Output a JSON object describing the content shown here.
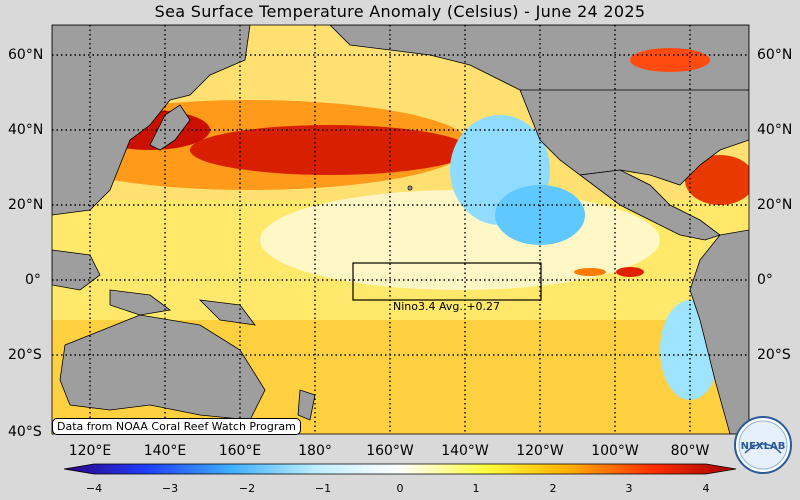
{
  "title": "Sea Surface Temperature Anomaly (Celsius) - June 24 2025",
  "lat_labels": [
    "60°N",
    "40°N",
    "20°N",
    "0°",
    "20°S",
    "40°S"
  ],
  "lon_labels": [
    "120°E",
    "140°E",
    "160°E",
    "180°",
    "160°W",
    "140°W",
    "120°W",
    "100°W",
    "80°W"
  ],
  "credit": "Data from NOAA Coral Reef Watch Program",
  "nino_label": "Nino3.4 Avg. +0.27",
  "colorbar": {
    "ticks": [
      "−4",
      "−3",
      "−2",
      "−1",
      "0",
      "1",
      "2",
      "3",
      "4"
    ],
    "colors": [
      "#2b0080",
      "#2040ff",
      "#3fb0ff",
      "#bfeeff",
      "#ffffff",
      "#ffff40",
      "#ffb000",
      "#ff3000",
      "#a00000"
    ]
  },
  "colors": {
    "land": "#9e9e9e",
    "ocean_warm": "#ffd84a",
    "ocean_hot": "#e83a00",
    "ocean_cool": "#7fd8ff"
  },
  "logo_text": "NEXLAB"
}
